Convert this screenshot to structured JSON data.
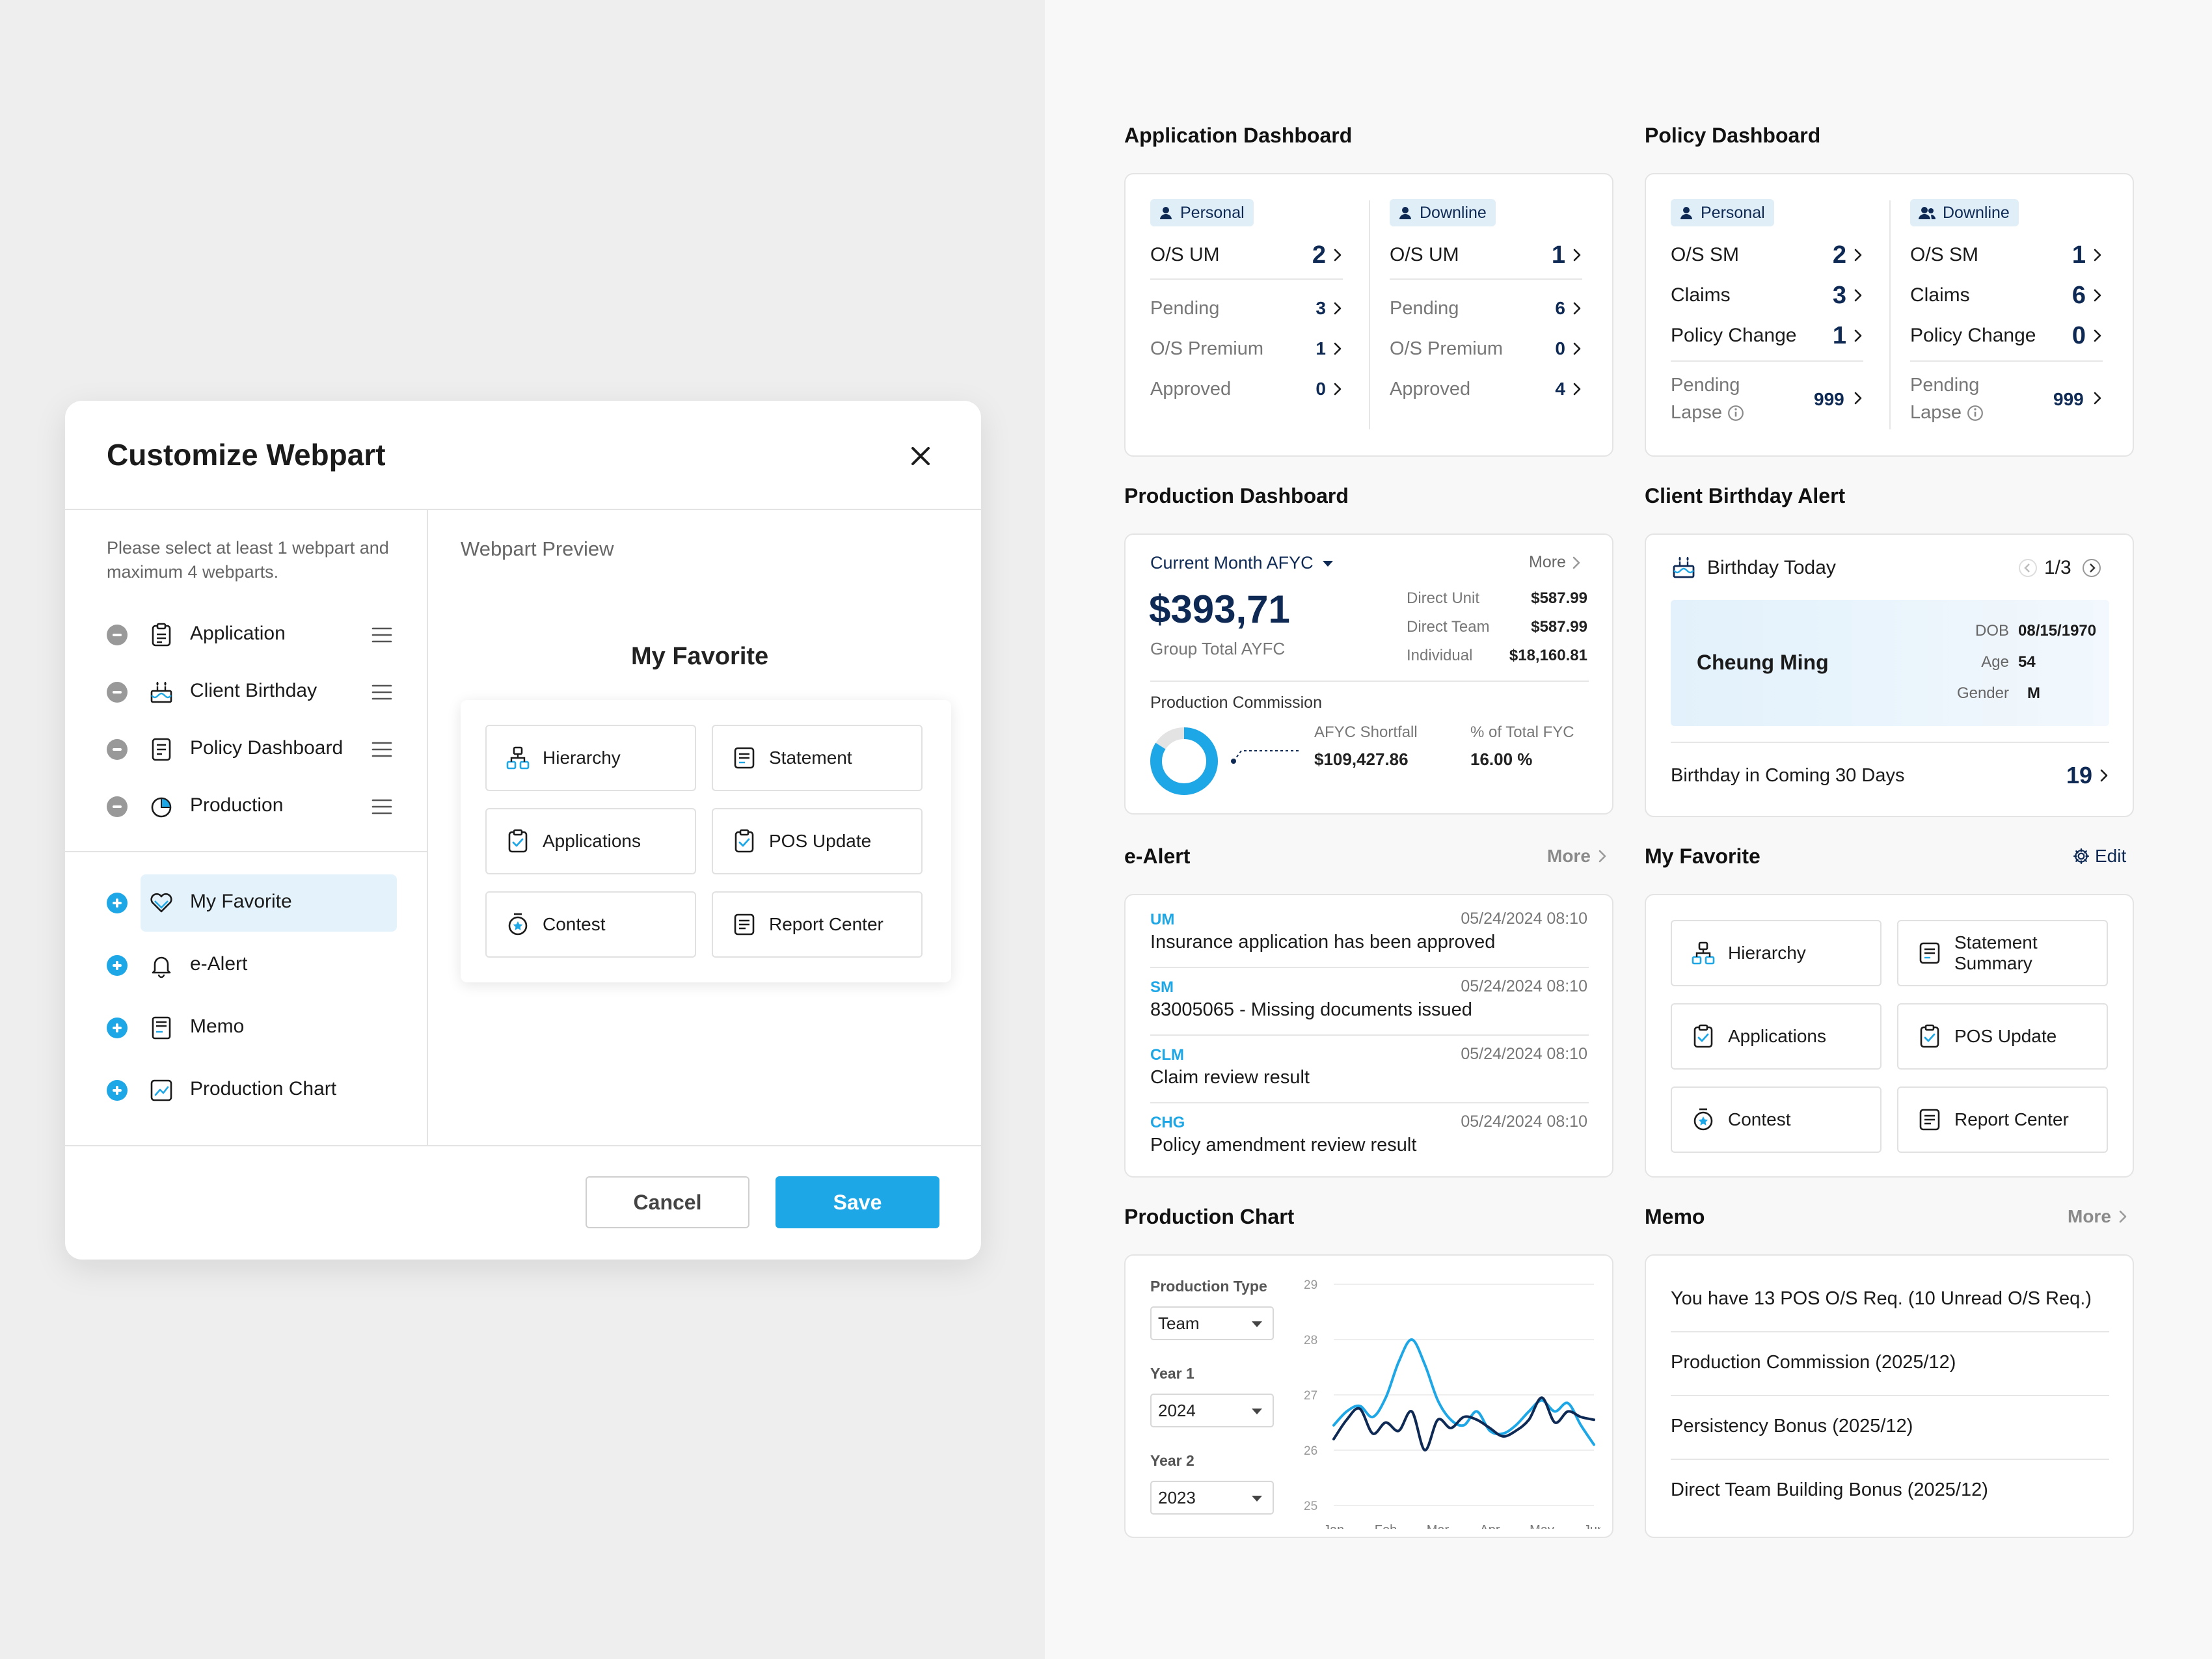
{
  "modal": {
    "title": "Customize Webpart",
    "hint": "Please select at least 1 webpart and maximum 4 webparts.",
    "selected": [
      {
        "label": "Application"
      },
      {
        "label": "Client Birthday"
      },
      {
        "label": "Policy Dashboard"
      },
      {
        "label": "Production"
      }
    ],
    "available": [
      {
        "label": "My Favorite"
      },
      {
        "label": "e-Alert"
      },
      {
        "label": "Memo"
      },
      {
        "label": "Production Chart"
      }
    ],
    "preview_title": "Webpart Preview",
    "preview_heading": "My Favorite",
    "preview_tiles": [
      "Hierarchy",
      "Statement",
      "Applications",
      "POS Update",
      "Contest",
      "Report Center"
    ],
    "cancel_label": "Cancel",
    "save_label": "Save"
  },
  "application_dashboard": {
    "title": "Application Dashboard",
    "personal": {
      "chip": "Personal",
      "os_label": "O/S UM",
      "os_value": "2",
      "rows": [
        {
          "label": "Pending",
          "value": "3"
        },
        {
          "label": "O/S Premium",
          "value": "1"
        },
        {
          "label": "Approved",
          "value": "0"
        }
      ]
    },
    "downline": {
      "chip": "Downline",
      "os_label": "O/S UM",
      "os_value": "1",
      "rows": [
        {
          "label": "Pending",
          "value": "6"
        },
        {
          "label": "O/S Premium",
          "value": "0"
        },
        {
          "label": "Approved",
          "value": "4"
        }
      ]
    }
  },
  "policy_dashboard": {
    "title": "Policy Dashboard",
    "personal": {
      "chip": "Personal",
      "rows": [
        {
          "label": "O/S SM",
          "value": "2"
        },
        {
          "label": "Claims",
          "value": "3"
        },
        {
          "label": "Policy Change",
          "value": "1"
        }
      ],
      "lapse_line1": "Pending",
      "lapse_line2": "Lapse",
      "lapse_value": "999"
    },
    "downline": {
      "chip": "Downline",
      "rows": [
        {
          "label": "O/S SM",
          "value": "1"
        },
        {
          "label": "Claims",
          "value": "6"
        },
        {
          "label": "Policy Change",
          "value": "0"
        }
      ],
      "lapse_line1": "Pending",
      "lapse_line2": "Lapse",
      "lapse_value": "999"
    }
  },
  "production_dashboard": {
    "title": "Production Dashboard",
    "period": "Current Month AFYC",
    "more": "More",
    "amount": "$393,71",
    "amount_caption": "Group Total AYFC",
    "breakdown": [
      {
        "label": "Direct Unit",
        "value": "$587.99"
      },
      {
        "label": "Direct Team",
        "value": "$587.99"
      },
      {
        "label": "Individual",
        "value": "$18,160.81"
      }
    ],
    "commission_title": "Production Commission",
    "shortfall_label": "AFYC Shortfall",
    "shortfall_value": "$109,427.86",
    "percent_label": "% of Total FYC",
    "percent_value": "16.00 %",
    "donut_fraction": 0.84,
    "colors": {
      "accent": "#1ea7e6",
      "navy": "#0e2a54"
    }
  },
  "birthday": {
    "title": "Client Birthday Alert",
    "today_label": "Birthday Today",
    "pager": "1/3",
    "name": "Cheung Ming",
    "dob_label": "DOB",
    "dob_value": "08/15/1970",
    "age_label": "Age",
    "age_value": "54",
    "gender_label": "Gender",
    "gender_value": "M",
    "coming_label": "Birthday in Coming 30 Days",
    "coming_value": "19"
  },
  "ealert": {
    "title": "e-Alert",
    "more": "More",
    "items": [
      {
        "code": "UM",
        "time": "05/24/2024 08:10",
        "message": "Insurance application has been approved"
      },
      {
        "code": "SM",
        "time": "05/24/2024 08:10",
        "message": "83005065 - Missing documents issued"
      },
      {
        "code": "CLM",
        "time": "05/24/2024 08:10",
        "message": "Claim review result"
      },
      {
        "code": "CHG",
        "time": "05/24/2024 08:10",
        "message": "Policy amendment review result"
      }
    ]
  },
  "my_favorite": {
    "title": "My Favorite",
    "edit_label": "Edit",
    "tiles": [
      {
        "line1": "Hierarchy",
        "line2": ""
      },
      {
        "line1": "Statement",
        "line2": "Summary"
      },
      {
        "line1": "Applications",
        "line2": ""
      },
      {
        "line1": "POS Update",
        "line2": ""
      },
      {
        "line1": "Contest",
        "line2": ""
      },
      {
        "line1": "Report Center",
        "line2": ""
      }
    ]
  },
  "production_chart": {
    "title": "Production Chart",
    "type_label": "Production Type",
    "type_value": "Team",
    "year1_label": "Year 1",
    "year1_value": "2024",
    "year2_label": "Year 2",
    "year2_value": "2023"
  },
  "chart_data": {
    "type": "line",
    "x": [
      "Jan",
      "Feb",
      "Mar",
      "Apr",
      "May",
      "Jun"
    ],
    "ylim": [
      25,
      29
    ],
    "yticks": [
      29,
      28,
      27,
      26,
      25
    ],
    "grid": true,
    "series": [
      {
        "color": "#1ea7e6",
        "x": [
          0,
          0.25,
          0.5,
          0.75,
          1,
          1.25,
          1.5,
          1.75,
          2,
          2.25,
          2.5,
          2.75,
          3,
          3.25,
          3.5,
          3.75,
          4,
          4.25,
          4.5,
          4.75,
          5
        ],
        "values": [
          26.45,
          26.7,
          26.8,
          26.6,
          26.95,
          27.6,
          28.0,
          27.55,
          26.9,
          26.55,
          26.45,
          26.7,
          26.35,
          26.3,
          26.45,
          26.7,
          26.9,
          26.7,
          26.85,
          26.45,
          26.1
        ]
      },
      {
        "color": "#0e2a54",
        "x": [
          0,
          0.25,
          0.5,
          0.75,
          1,
          1.25,
          1.5,
          1.75,
          2,
          2.25,
          2.5,
          2.75,
          3,
          3.25,
          3.5,
          3.75,
          4,
          4.25,
          4.5,
          4.75,
          5
        ],
        "values": [
          26.2,
          26.55,
          26.75,
          26.3,
          26.5,
          26.35,
          26.7,
          26.0,
          26.55,
          26.4,
          26.6,
          26.55,
          26.4,
          26.25,
          26.35,
          26.55,
          26.95,
          26.5,
          26.7,
          26.6,
          26.55
        ]
      }
    ]
  },
  "memo": {
    "title": "Memo",
    "more": "More",
    "items": [
      "You have 13 POS O/S Req. (10 Unread O/S Req.)",
      "Production Commission (2025/12)",
      "Persistency Bonus (2025/12)",
      "Direct Team Building Bonus (2025/12)"
    ]
  }
}
